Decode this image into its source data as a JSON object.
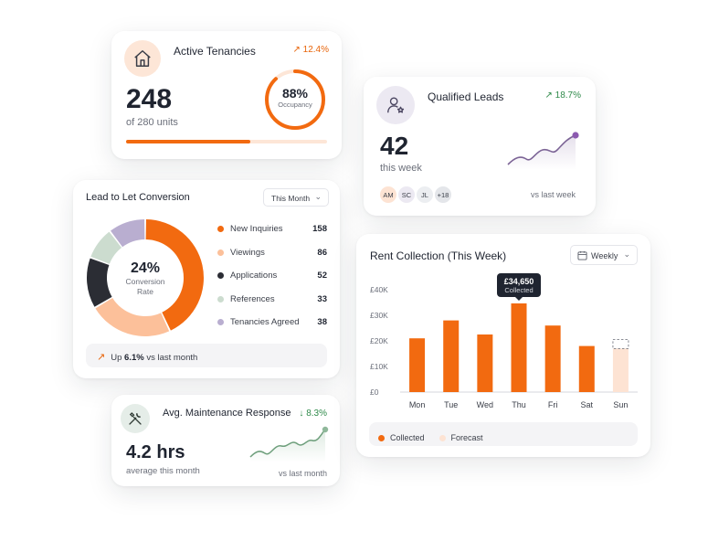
{
  "tenancies": {
    "title": "Active Tenancies",
    "trend": "12.4%",
    "value": "248",
    "subtitle": "of 280 units",
    "occupancy": "88%",
    "occupancy_label": "Occupancy",
    "occupancy_fraction": 0.88,
    "progress_fraction": 0.62,
    "icon": "house-icon"
  },
  "leads": {
    "title": "Qualified Leads",
    "trend": "18.7%",
    "value": "42",
    "subtitle": "this week",
    "avatars": [
      "AM",
      "SC",
      "JL",
      "+18"
    ],
    "vs_label": "vs last week",
    "icon": "user-star-icon"
  },
  "conversion": {
    "title": "Lead to Let Conversion",
    "period": "This Month",
    "center_value": "24%",
    "center_label_1": "Conversion",
    "center_label_2": "Rate",
    "footer_prefix": "Up",
    "footer_value": "6.1%",
    "footer_suffix": "vs last month",
    "legend": [
      {
        "label": "New Inquiries",
        "value": "158",
        "color": "#f26a10"
      },
      {
        "label": "Viewings",
        "value": "86",
        "color": "#fcc09a"
      },
      {
        "label": "Applications",
        "value": "52",
        "color": "#2b2d34"
      },
      {
        "label": "References",
        "value": "33",
        "color": "#ccdccf"
      },
      {
        "label": "Tenancies Agreed",
        "value": "38",
        "color": "#b9aed0"
      }
    ]
  },
  "maintenance": {
    "title": "Avg. Maintenance Response",
    "trend": "8.3%",
    "value": "4.2 hrs",
    "subtitle": "average this month",
    "vs_label": "vs last month",
    "icon": "tools-icon"
  },
  "rent": {
    "title": "Rent Collection (This Week)",
    "period": "Weekly",
    "tooltip_value": "£34,650",
    "tooltip_label": "Collected",
    "legend_collected": "Collected",
    "legend_forecast": "Forecast",
    "colors": {
      "collected": "#f26a10",
      "forecast": "#fde3d3"
    }
  },
  "chart_data": {
    "type": "bar",
    "title": "Rent Collection (This Week)",
    "categories": [
      "Mon",
      "Tue",
      "Wed",
      "Thu",
      "Fri",
      "Sat",
      "Sun"
    ],
    "series": [
      {
        "name": "Collected",
        "values": [
          21000,
          28000,
          22500,
          34650,
          26000,
          18000,
          null
        ]
      },
      {
        "name": "Forecast",
        "values": [
          null,
          null,
          null,
          null,
          null,
          null,
          17000
        ]
      }
    ],
    "y_ticks": [
      "£0",
      "£10K",
      "£20K",
      "£30K",
      "£40K"
    ],
    "ylim": [
      0,
      40000
    ],
    "grid": false,
    "legend": "bottom-left"
  }
}
